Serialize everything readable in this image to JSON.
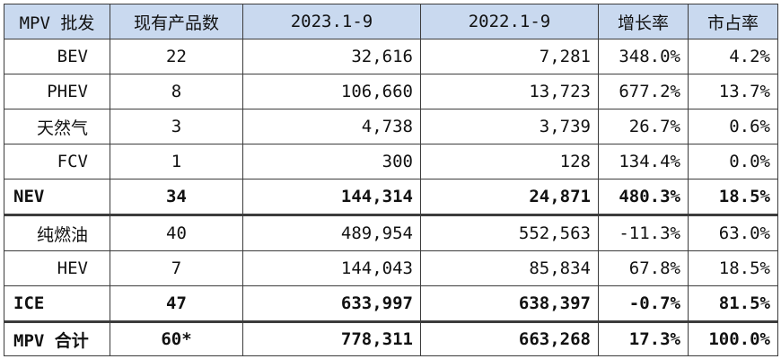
{
  "table": {
    "headers": [
      "MPV 批发",
      "现有产品数",
      "2023.1-9",
      "2022.1-9",
      "增长率",
      "市占率"
    ],
    "rows": [
      [
        "BEV",
        "22",
        "32,616",
        "7,281",
        "348.0%",
        "4.2%"
      ],
      [
        "PHEV",
        "8",
        "106,660",
        "13,723",
        "677.2%",
        "13.7%"
      ],
      [
        "天然气",
        "3",
        "4,738",
        "3,739",
        "26.7%",
        "0.6%"
      ],
      [
        "FCV",
        "1",
        "300",
        "128",
        "134.4%",
        "0.0%"
      ],
      [
        "NEV",
        "34",
        "144,314",
        "24,871",
        "480.3%",
        "18.5%"
      ],
      [
        "纯燃油",
        "40",
        "489,954",
        "552,563",
        "-11.3%",
        "63.0%"
      ],
      [
        "HEV",
        "7",
        "144,043",
        "85,834",
        "67.8%",
        "18.5%"
      ],
      [
        "ICE",
        "47",
        "633,997",
        "638,397",
        "-0.7%",
        "81.5%"
      ],
      [
        "MPV 合计",
        "60*",
        "778,311",
        "663,268",
        "17.3%",
        "100.0%"
      ]
    ]
  },
  "colors": {
    "header_background": "#c9d9ef",
    "border": "#3c3c3c",
    "text": "#111111"
  }
}
